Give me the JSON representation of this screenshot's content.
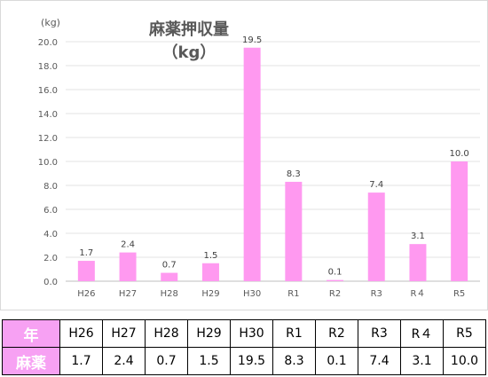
{
  "chart_data": {
    "type": "bar",
    "title": "麻薬押収量",
    "subtitle": "（kg）",
    "ylabel": "(kg)",
    "categories": [
      "H26",
      "H27",
      "H28",
      "H29",
      "H30",
      "R1",
      "R2",
      "R3",
      "R４",
      "R5"
    ],
    "values": [
      1.7,
      2.4,
      0.7,
      1.5,
      19.5,
      8.3,
      0.1,
      7.4,
      3.1,
      10.0
    ],
    "value_labels": [
      "1.7",
      "2.4",
      "0.7",
      "1.5",
      "19.5",
      "8.3",
      "0.1",
      "7.4",
      "3.1",
      "10.0"
    ],
    "ylim": [
      0,
      20
    ],
    "yticks": [
      "0.0",
      "2.0",
      "4.0",
      "6.0",
      "8.0",
      "10.0",
      "12.0",
      "14.0",
      "16.0",
      "18.0",
      "20.0"
    ],
    "grid": "horizontal",
    "bar_color": "#ff99f0"
  },
  "table": {
    "year_header": "年",
    "value_header": "麻薬",
    "years": [
      "H26",
      "H27",
      "H28",
      "H29",
      "H30",
      "R1",
      "R2",
      "R3",
      "R４",
      "R5"
    ],
    "values": [
      "1.7",
      "2.4",
      "0.7",
      "1.5",
      "19.5",
      "8.3",
      "0.1",
      "7.4",
      "3.1",
      "10.0"
    ],
    "header_color": "#f7a1f3"
  }
}
